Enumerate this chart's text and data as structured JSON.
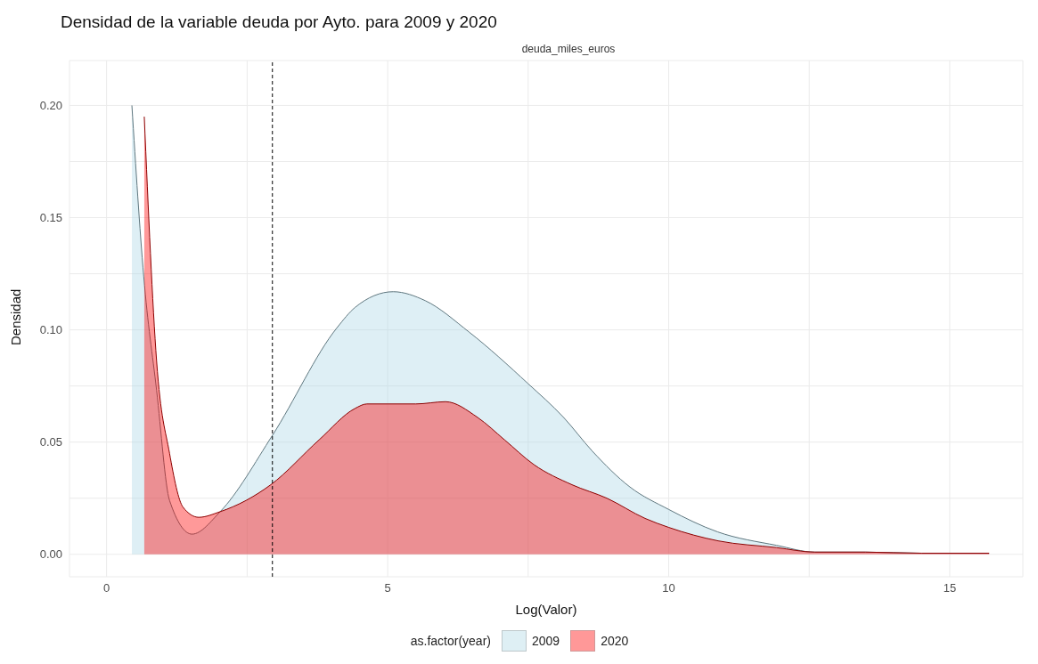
{
  "chart_data": {
    "type": "area",
    "title": "Densidad de la variable deuda por Ayto. para 2009 y 2020",
    "subtitle": "deuda_miles_euros",
    "xlabel": "Log(Valor)",
    "ylabel": "Densidad",
    "legend_title": "as.factor(year)",
    "series": [
      {
        "name": "2009",
        "color": "#add8e6",
        "x": [
          0.45,
          0.66,
          0.89,
          1.12,
          1.52,
          2.02,
          2.95,
          4.1,
          4.42,
          5.1,
          5.67,
          6.45,
          7.5,
          8.13,
          8.64,
          9.31,
          10,
          10.87,
          11.92,
          12.6,
          13.5,
          14.5,
          15.7
        ],
        "values": [
          0.2,
          0.124,
          0.073,
          0.024,
          0.009,
          0.019,
          0.053,
          0.101,
          0.11,
          0.117,
          0.113,
          0.099,
          0.076,
          0.061,
          0.046,
          0.03,
          0.02,
          0.01,
          0.004,
          0.001,
          0.001,
          0.0005,
          0.0005
        ]
      },
      {
        "name": "2020",
        "color": "#ff0000",
        "x": [
          0.67,
          0.89,
          1.12,
          1.36,
          1.64,
          2.02,
          2.48,
          2.92,
          3.78,
          4.42,
          4.63,
          5.5,
          6.03,
          6.6,
          7.08,
          7.6,
          8.28,
          8.9,
          9.58,
          10,
          10.88,
          11.92,
          12.6,
          13.5,
          14.5,
          15.7
        ],
        "values": [
          0.195,
          0.086,
          0.045,
          0.021,
          0.0165,
          0.019,
          0.024,
          0.031,
          0.051,
          0.065,
          0.067,
          0.067,
          0.068,
          0.061,
          0.051,
          0.04,
          0.031,
          0.025,
          0.016,
          0.012,
          0.006,
          0.003,
          0.001,
          0.001,
          0.0005,
          0.0005
        ]
      }
    ],
    "xlim": [
      -0.66,
      16.3
    ],
    "xticks": [
      0,
      {
        "value": 2.5,
        "label": null
      },
      5,
      {
        "value": 7.5,
        "label": null
      },
      10,
      {
        "value": 12.5,
        "label": null
      },
      15
    ],
    "ylim": [
      -0.01,
      0.22
    ],
    "yticks": [
      {
        "value": 0,
        "label": "0.00"
      },
      {
        "value": 0.025,
        "label": null
      },
      0.05,
      {
        "value": 0.075,
        "label": null
      },
      {
        "value": 0.1,
        "label": "0.10"
      },
      {
        "value": 0.125,
        "label": null
      },
      0.15,
      {
        "value": 0.175,
        "label": null
      },
      {
        "value": 0.2,
        "label": "0.20"
      }
    ],
    "ref_lines": [
      {
        "axis": "x",
        "value": 2.95,
        "color": "#000000",
        "line_style": "dashed"
      }
    ],
    "grid": true,
    "legend": "bottom"
  }
}
